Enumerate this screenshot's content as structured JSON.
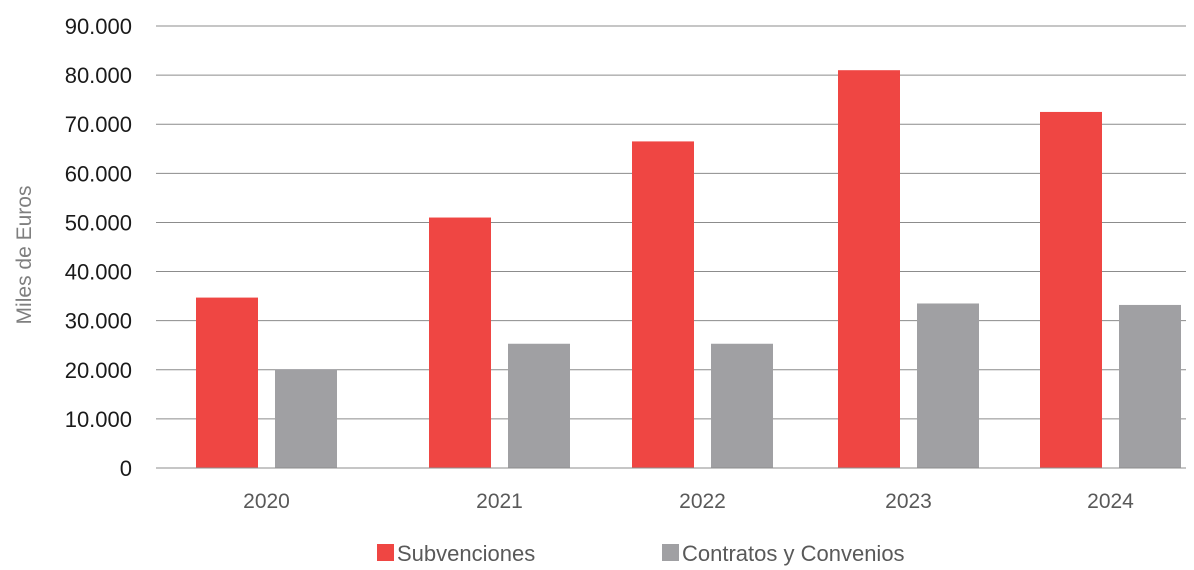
{
  "chart_data": {
    "type": "bar",
    "categories": [
      "2020",
      "2021",
      "2022",
      "2023",
      "2024"
    ],
    "series": [
      {
        "name": "Subvenciones",
        "color": "#ef4643",
        "values": [
          34700,
          51000,
          66500,
          81000,
          72500
        ]
      },
      {
        "name": "Contratos y Convenios",
        "color": "#a0a0a3",
        "values": [
          20100,
          25300,
          25300,
          33500,
          33200
        ]
      }
    ],
    "xlabel": "",
    "ylabel": "Miles de Euros",
    "ylim": [
      0,
      90000
    ],
    "yticks": [
      "0",
      "10.000",
      "20.000",
      "30.000",
      "40.000",
      "50.000",
      "60.000",
      "70.000",
      "80.000",
      "90.000"
    ],
    "grid": true,
    "legend": "bottom"
  }
}
